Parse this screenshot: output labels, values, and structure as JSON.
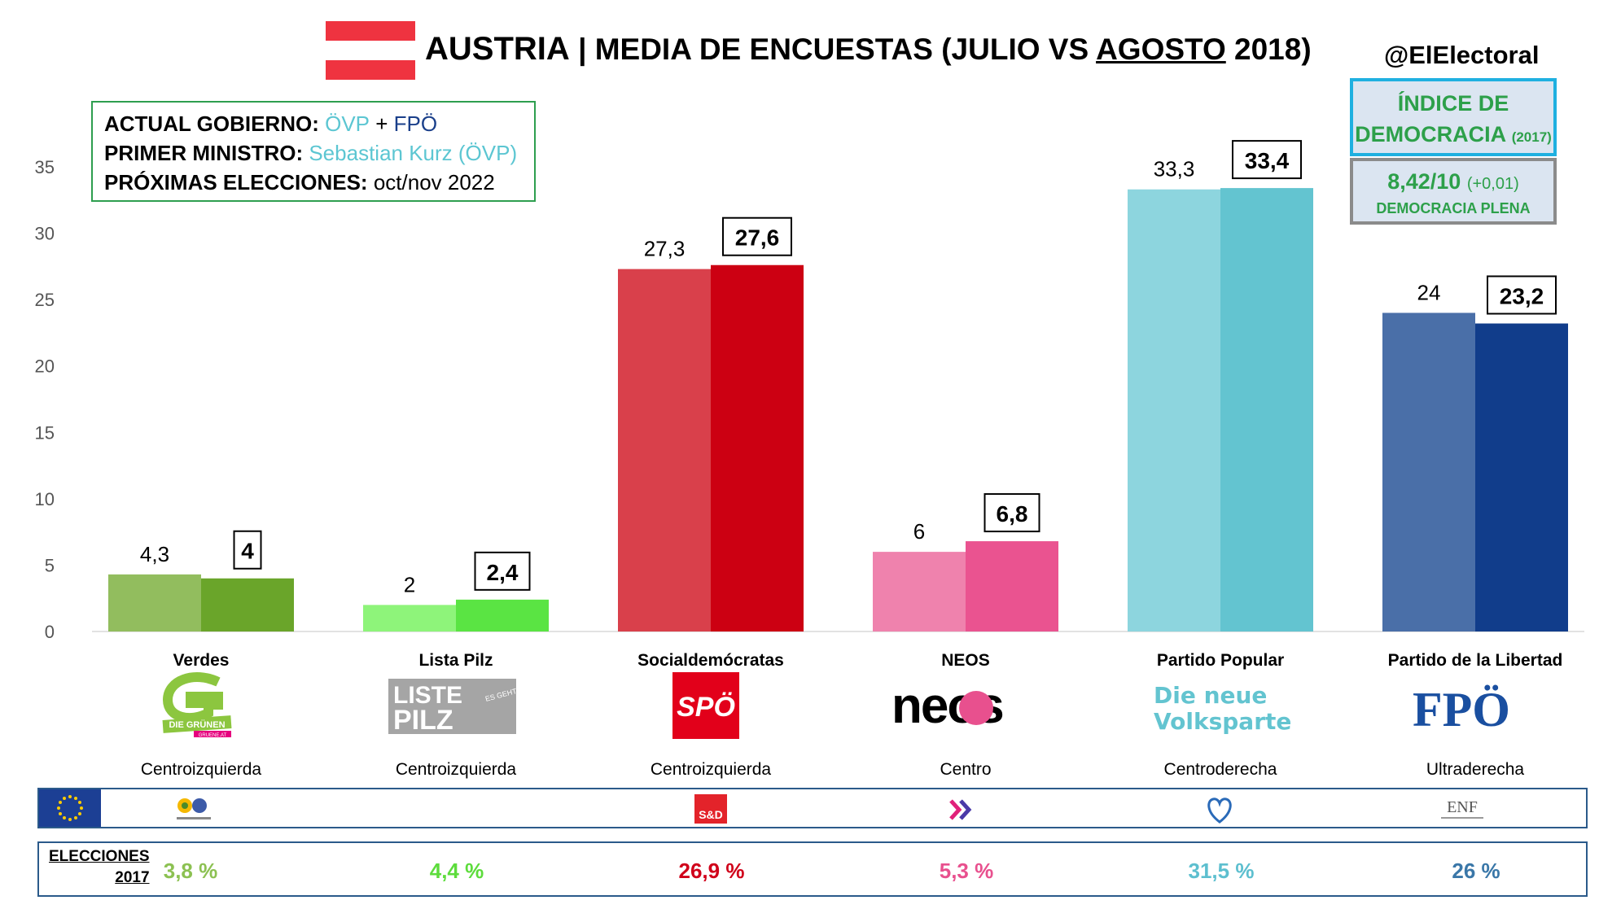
{
  "header": {
    "country": "AUSTRIA",
    "separator": "|",
    "subtitle_prefix": "MEDIA DE ENCUESTAS (JULIO VS ",
    "subtitle_underlined": "AGOSTO",
    "subtitle_suffix": " 2018)",
    "handle": "@ElElectoral",
    "flag_colors": [
      "#ef3340",
      "#ffffff",
      "#ef3340"
    ]
  },
  "government": {
    "label1": "ACTUAL GOBIERNO:",
    "party1": "ÖVP",
    "plus": "+",
    "party2": "FPÖ",
    "label2": "PRIMER MINISTRO:",
    "pm": "Sebastian Kurz (ÖVP)",
    "label3": "PRÓXIMAS ELECCIONES:",
    "next": "oct/nov 2022"
  },
  "democracy": {
    "title_line1": "ÍNDICE DE",
    "title_line2": "DEMOCRACIA",
    "year": "(2017)",
    "score": "8,42/10",
    "delta": "(+0,01)",
    "category": "DEMOCRACIA PLENA"
  },
  "chart_data": {
    "type": "bar",
    "categories": [
      "Verdes",
      "Lista Pilz",
      "Socialdemócratas",
      "NEOS",
      "Partido Popular",
      "Partido de la Libertad"
    ],
    "series": [
      {
        "values": [
          4.3,
          2,
          27.3,
          6,
          33.3,
          24
        ],
        "labels": [
          "4,3",
          "2",
          "27,3",
          "6",
          "33,3",
          "24"
        ]
      },
      {
        "values": [
          4,
          2.4,
          27.6,
          6.8,
          33.4,
          23.2
        ],
        "labels": [
          "4",
          "2,4",
          "27,6",
          "6,8",
          "33,4",
          "23,2"
        ]
      }
    ],
    "colors_first": [
      "#92bd5e",
      "#8ef47a",
      "#d9404b",
      "#ef82ad",
      "#8dd5de",
      "#4a6fa8"
    ],
    "colors_second": [
      "#6aa52a",
      "#5ae443",
      "#cc0012",
      "#ea5390",
      "#63c4d0",
      "#113d8b"
    ],
    "ylim": [
      0,
      35
    ],
    "yticks": [
      "0",
      "5",
      "10",
      "15",
      "20",
      "25",
      "30",
      "35"
    ],
    "grid": false
  },
  "parties": [
    {
      "ideology": "Centroizquierda",
      "logo": "gruene-logo",
      "logo_text1": "DIE GRÜNEN",
      "logo_text2": "GRUENE.AT",
      "family": "greens-efa-icon",
      "result": "3,8 %",
      "result_color": "#8cc152"
    },
    {
      "ideology": "Centroizquierda",
      "logo": "liste-pilz-logo",
      "logo_text1": "LISTE",
      "logo_text2": "PILZ",
      "logo_text3": "ES GEHT!",
      "family": "",
      "result": "4,4 %",
      "result_color": "#5ddc3c"
    },
    {
      "ideology": "Centroizquierda",
      "logo": "spo-logo",
      "logo_text1": "SPÖ",
      "family": "s-and-d-icon",
      "family_text": "S&D",
      "result": "26,9 %",
      "result_color": "#d0001a"
    },
    {
      "ideology": "Centro",
      "logo": "neos-logo",
      "logo_text1": "neos",
      "family": "alde-icon",
      "result": "5,3 %",
      "result_color": "#e8508e"
    },
    {
      "ideology": "Centroderecha",
      "logo": "ovp-logo",
      "logo_text1": "Die neue",
      "logo_text2": "Volkspartei",
      "family": "epp-icon",
      "result": "31,5 %",
      "result_color": "#5dbfcf"
    },
    {
      "ideology": "Ultraderecha",
      "logo": "fpo-logo",
      "logo_text1": "FPÖ",
      "family": "enf-icon",
      "family_text": "ENF",
      "result": "26 %",
      "result_color": "#3a77a8"
    }
  ],
  "elections": {
    "label_line1": "ELECCIONES",
    "label_line2": "2017"
  }
}
